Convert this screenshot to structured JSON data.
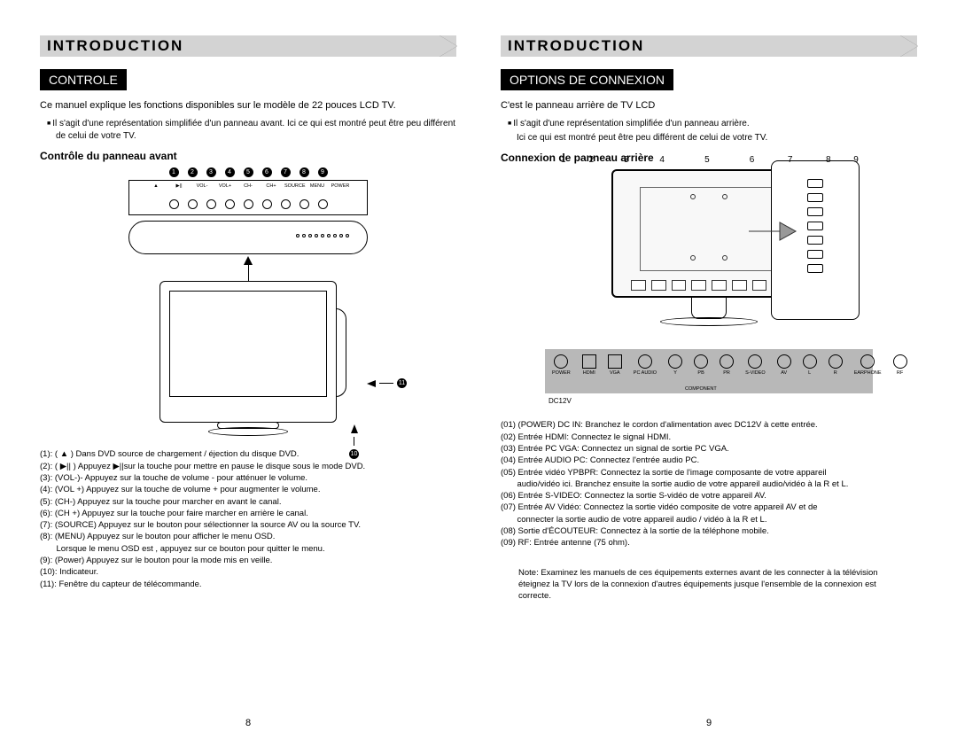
{
  "left": {
    "header": "INTRODUCTION",
    "badge": "CONTROLE",
    "intro_text": "Ce manuel explique les fonctions disponibles sur le modèle de 22 pouces LCD TV.",
    "bullet": "Il s'agit d'une représentation simplifiée d'un panneau avant. Ici ce qui est montré peut être peu différent de celui de votre TV.",
    "section_heading": "Contrôle du panneau avant",
    "panel_numbers": [
      "1",
      "2",
      "3",
      "4",
      "5",
      "6",
      "7",
      "8",
      "9"
    ],
    "panel_labels": [
      "▲",
      "▶||",
      "VOL-",
      "VOL+",
      "CH-",
      "CH+",
      "SOURCE",
      "MENU",
      "POWER"
    ],
    "callout_10": "10",
    "callout_11": "11",
    "items": [
      "(1): ( ▲ ) Dans DVD source de chargement / éjection du disque DVD.",
      "(2): ( ▶|| ) Appuyez ▶||sur la touche pour mettre en pause le disque sous le mode DVD.",
      "(3): (VOL-)- Appuyez sur la touche de volume - pour atténuer le volume.",
      "(4): (VOL +) Appuyez sur la touche de volume + pour augmenter le volume.",
      "(5): (CH-) Appuyez sur la touche pour marcher en avant le canal.",
      "(6): (CH +) Appuyez sur la touche pour faire marcher en arrière le canal.",
      "(7): (SOURCE) Appuyez sur le bouton pour sélectionner la source AV ou la source TV.",
      "(8): (MENU) Appuyez sur le bouton pour afficher le menu OSD.",
      "       Lorsque le menu OSD est , appuyez sur ce bouton pour quitter le menu.",
      "(9): (Power) Appuyez sur le bouton pour la mode mis en veille.",
      "(10): Indicateur.",
      "(11): Fenêtre du capteur de télécommande."
    ],
    "page_num": "8"
  },
  "right": {
    "header": "INTRODUCTION",
    "badge": "OPTIONS DE CONNEXION",
    "intro_text": "C'est le panneau arrière de TV LCD",
    "bullet1": "Il s'agit d'une représentation simplifiée d'un panneau arrière.",
    "bullet2": "Ici ce qui est montré peut être peu différent de celui de votre TV.",
    "section_heading": "Connexion de panneau arrière",
    "port_nums": [
      "1",
      "2",
      "3",
      "4",
      "5",
      "6",
      "7",
      "8",
      "9"
    ],
    "port_num_widths": [
      30,
      45,
      48,
      48,
      72,
      48,
      54,
      48,
      26
    ],
    "ports": [
      {
        "label": "POWER",
        "shape": "round"
      },
      {
        "label": "HDMI",
        "shape": "rect"
      },
      {
        "label": "VGA",
        "shape": "rect"
      },
      {
        "label": "PC AUDIO",
        "shape": "round"
      },
      {
        "label": "Y",
        "shape": "round"
      },
      {
        "label": "PB",
        "shape": "round"
      },
      {
        "label": "PR",
        "shape": "round"
      },
      {
        "label": "S-VIDEO",
        "shape": "round"
      },
      {
        "label": "AV",
        "shape": "round"
      },
      {
        "label": "L",
        "shape": "round"
      },
      {
        "label": "R",
        "shape": "round"
      },
      {
        "label": "EARPHONE",
        "shape": "round"
      },
      {
        "label": "RF",
        "shape": "round"
      }
    ],
    "component_label": "COMPONENT",
    "dc_label": "DC12V",
    "desc": [
      "(01) (POWER) DC IN: Branchez le cordon d'alimentation avec DC12V à cette entrée.",
      "(02) Entrée HDMI: Connectez le signal HDMI.",
      "(03) Entrée PC VGA: Connectez un signal de sortie PC VGA.",
      "(04) Entrée AUDIO PC: Connectez l'entrée audio PC.",
      "(05) Entrée vidéo YPBPR: Connectez la sortie de l'image composante de votre appareil",
      "       audio/vidéo ici. Branchez ensuite la sortie audio de votre appareil audio/vidéo à la R et L.",
      "(06) Entrée S-VIDEO: Connectez la sortie S-vidéo de votre appareil AV.",
      "(07)  Entrée AV Vidéo: Connectez la sortie vidéo composite de votre appareil AV et de",
      "       connecter la sortie audio de votre appareil audio / vidéo à la R et L.",
      "(08) Sortie d'ÉCOUTEUR: Connectez à la sortie de la téléphone mobile.",
      "(09) RF: Entrée antenne (75 ohm)."
    ],
    "note": "Note: Examinez les manuels de ces équipements externes avant de les connecter à la télévision éteignez la TV lors de la connexion d'autres équipements jusque l'ensemble de la connexion est correcte.",
    "page_num": "9"
  }
}
